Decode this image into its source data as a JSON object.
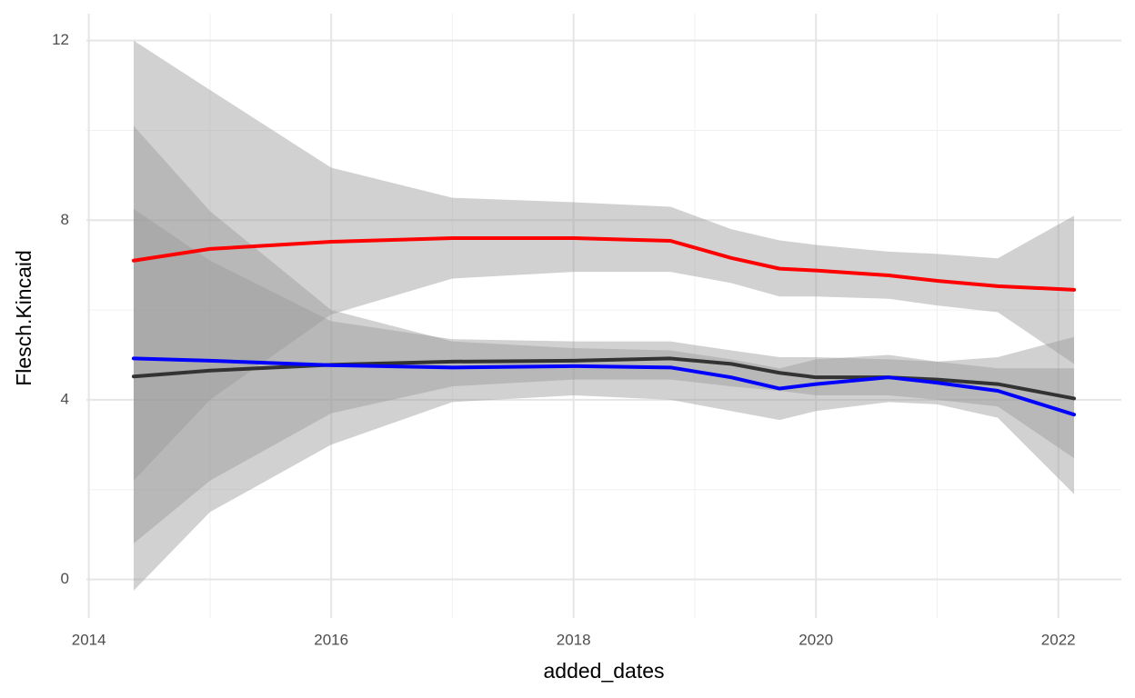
{
  "chart_data": {
    "type": "smooth",
    "x_label": "added_dates",
    "y_label": "Flesch.Kincaid",
    "xlim": [
      2013.98,
      2022.52
    ],
    "ylim": [
      -0.86,
      12.6
    ],
    "xticks": [
      2014,
      2016,
      2018,
      2020,
      2022
    ],
    "yticks": [
      0,
      4,
      8,
      12
    ],
    "xminor": [
      2015,
      2017,
      2019,
      2021
    ],
    "yminor": [
      2,
      6,
      10
    ],
    "grid": true,
    "band_color": "#999999",
    "band_opacity": 0.45,
    "x": [
      2014.37,
      2015,
      2016,
      2017,
      2018,
      2018.8,
      2019.3,
      2019.7,
      2020,
      2020.6,
      2021,
      2021.5,
      2022.13
    ],
    "series": [
      {
        "color": "#ff0000",
        "values": [
          7.1,
          7.36,
          7.52,
          7.6,
          7.6,
          7.54,
          7.16,
          6.92,
          6.88,
          6.77,
          6.65,
          6.53,
          6.45
        ],
        "upper": [
          12,
          10.9,
          9.17,
          8.5,
          8.4,
          8.3,
          7.8,
          7.55,
          7.45,
          7.3,
          7.25,
          7.15,
          8.1
        ],
        "lower": [
          2.2,
          4.0,
          5.9,
          6.7,
          6.85,
          6.85,
          6.6,
          6.3,
          6.3,
          6.25,
          6.1,
          5.95,
          4.8
        ]
      },
      {
        "color": "#333333",
        "values": [
          4.52,
          4.65,
          4.78,
          4.85,
          4.87,
          4.92,
          4.8,
          4.6,
          4.5,
          4.5,
          4.45,
          4.35,
          4.03
        ],
        "upper": [
          8.25,
          7.1,
          5.75,
          5.35,
          5.3,
          5.3,
          5.1,
          4.95,
          4.95,
          4.9,
          4.85,
          4.95,
          5.4
        ],
        "lower": [
          0.8,
          2.2,
          3.7,
          4.3,
          4.45,
          4.45,
          4.3,
          4.2,
          4.1,
          4.1,
          4.0,
          3.85,
          2.7
        ]
      },
      {
        "color": "#0000ff",
        "values": [
          4.92,
          4.87,
          4.77,
          4.72,
          4.75,
          4.72,
          4.5,
          4.25,
          4.35,
          4.5,
          4.38,
          4.2,
          3.67
        ],
        "upper": [
          10.1,
          8.2,
          6.0,
          5.3,
          5.15,
          5.1,
          4.9,
          4.7,
          4.9,
          5.0,
          4.85,
          4.7,
          4.7
        ],
        "lower": [
          -0.25,
          1.5,
          3.0,
          3.95,
          4.1,
          4.0,
          3.75,
          3.55,
          3.75,
          3.95,
          3.9,
          3.6,
          1.9
        ]
      }
    ]
  }
}
